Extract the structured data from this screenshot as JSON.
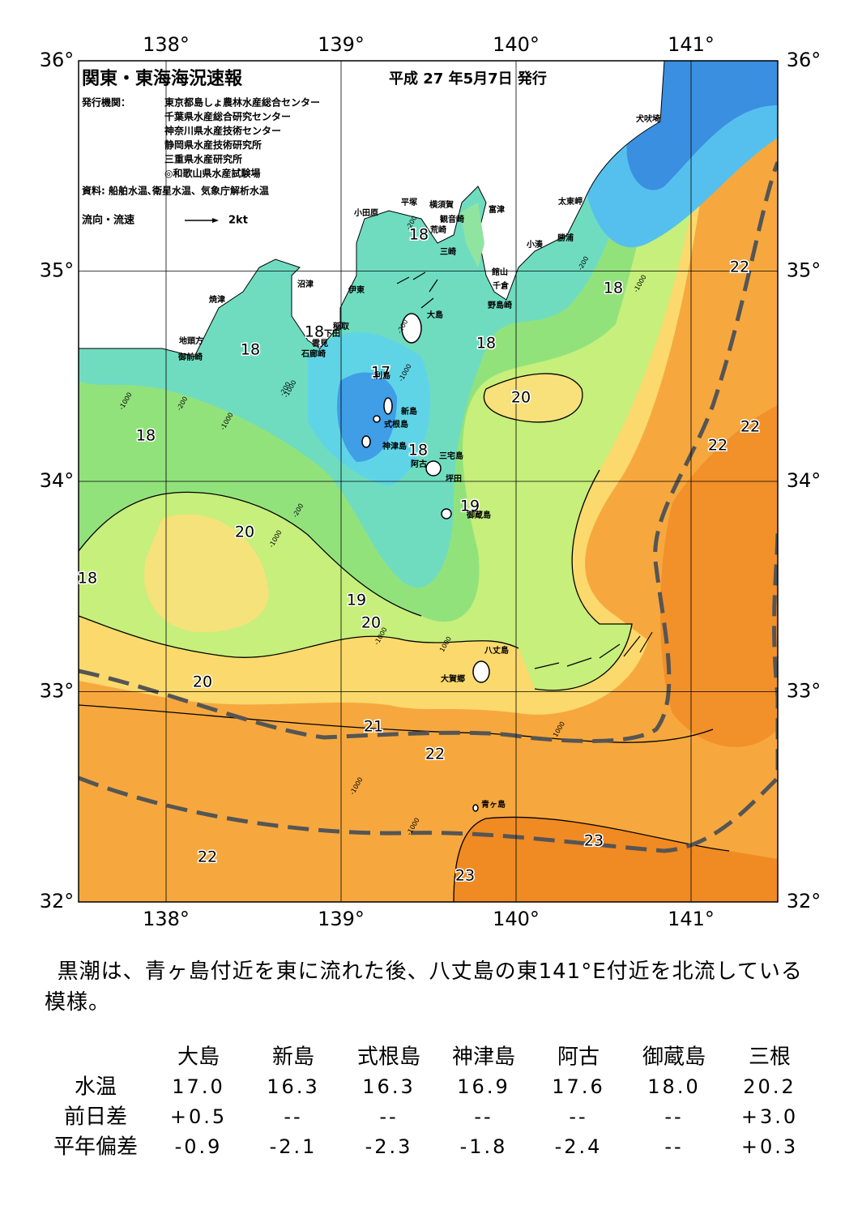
{
  "header": {
    "title": "関東・東海海況速報",
    "date": "平成 27 年5月7日 発行",
    "publisher_label": "発行機関：",
    "publishers": [
      "東京都島しょ農林水産総合センター",
      "千葉県水産総合研究センター",
      "神奈川県水産技術センター",
      "静岡県水産技術研究所",
      "三重県水産研究所",
      "◎和歌山県水産試験場"
    ],
    "source": "資料: 船舶水温､衛星水温、気象庁解析水温",
    "legend_label": "流向・流速",
    "legend_scale": "2kt"
  },
  "map": {
    "lon_ticks": [
      {
        "value": 138,
        "label": "138°"
      },
      {
        "value": 139,
        "label": "139°"
      },
      {
        "value": 140,
        "label": "140°"
      },
      {
        "value": 141,
        "label": "141°"
      }
    ],
    "lat_ticks": [
      {
        "value": 36,
        "label": "36°"
      },
      {
        "value": 35,
        "label": "35°"
      },
      {
        "value": 34,
        "label": "34°"
      },
      {
        "value": 33,
        "label": "33°"
      },
      {
        "value": 32,
        "label": "32°"
      }
    ],
    "isotherm_labels": [
      "18",
      "18",
      "18",
      "18",
      "18",
      "17",
      "20",
      "18",
      "18",
      "22",
      "22",
      "22",
      "19",
      "20",
      "18",
      "19",
      "20",
      "20",
      "21",
      "22",
      "22",
      "23",
      "23"
    ],
    "place_names": [
      "犬吠埼",
      "太東岬",
      "勝浦",
      "小湊",
      "富津",
      "横須賀",
      "平塚",
      "観音崎",
      "荒崎",
      "三崎",
      "小田原",
      "館山",
      "千倉",
      "野島崎",
      "沼津",
      "伊東",
      "焼津",
      "稲取",
      "下田",
      "雲見",
      "石廊崎",
      "地頭方",
      "御前崎",
      "大島",
      "利島",
      "新島",
      "式根島",
      "神津島",
      "三宅島",
      "阿古",
      "坪田",
      "御蔵島",
      "八丈島",
      "大賀郷",
      "青ヶ島"
    ],
    "depth_labels": [
      "-1000",
      "-200",
      "-1000",
      "-200",
      "-1000",
      "-200",
      "-1000",
      "-200",
      "-1000",
      "-200",
      "-1000",
      "1000",
      "-1000",
      "-1000",
      "1000",
      "-200",
      "-1000"
    ]
  },
  "summary": "黒潮は、青ヶ島付近を東に流れた後、八丈島の東141°E付近を北流している模様。",
  "table": {
    "columns": [
      "大島",
      "新島",
      "式根島",
      "神津島",
      "阿古",
      "御蔵島",
      "三根"
    ],
    "rows": [
      {
        "label": "水温",
        "values": [
          "17.0",
          "16.3",
          "16.3",
          "16.9",
          "17.6",
          "18.0",
          "20.2"
        ]
      },
      {
        "label": "前日差",
        "values": [
          "+0.5",
          "--",
          "--",
          "--",
          "--",
          "--",
          "+3.0"
        ]
      },
      {
        "label": "平年偏差",
        "values": [
          "-0.9",
          "-2.1",
          "-2.3",
          "-1.8",
          "-2.4",
          "--",
          "+0.3"
        ]
      }
    ]
  }
}
